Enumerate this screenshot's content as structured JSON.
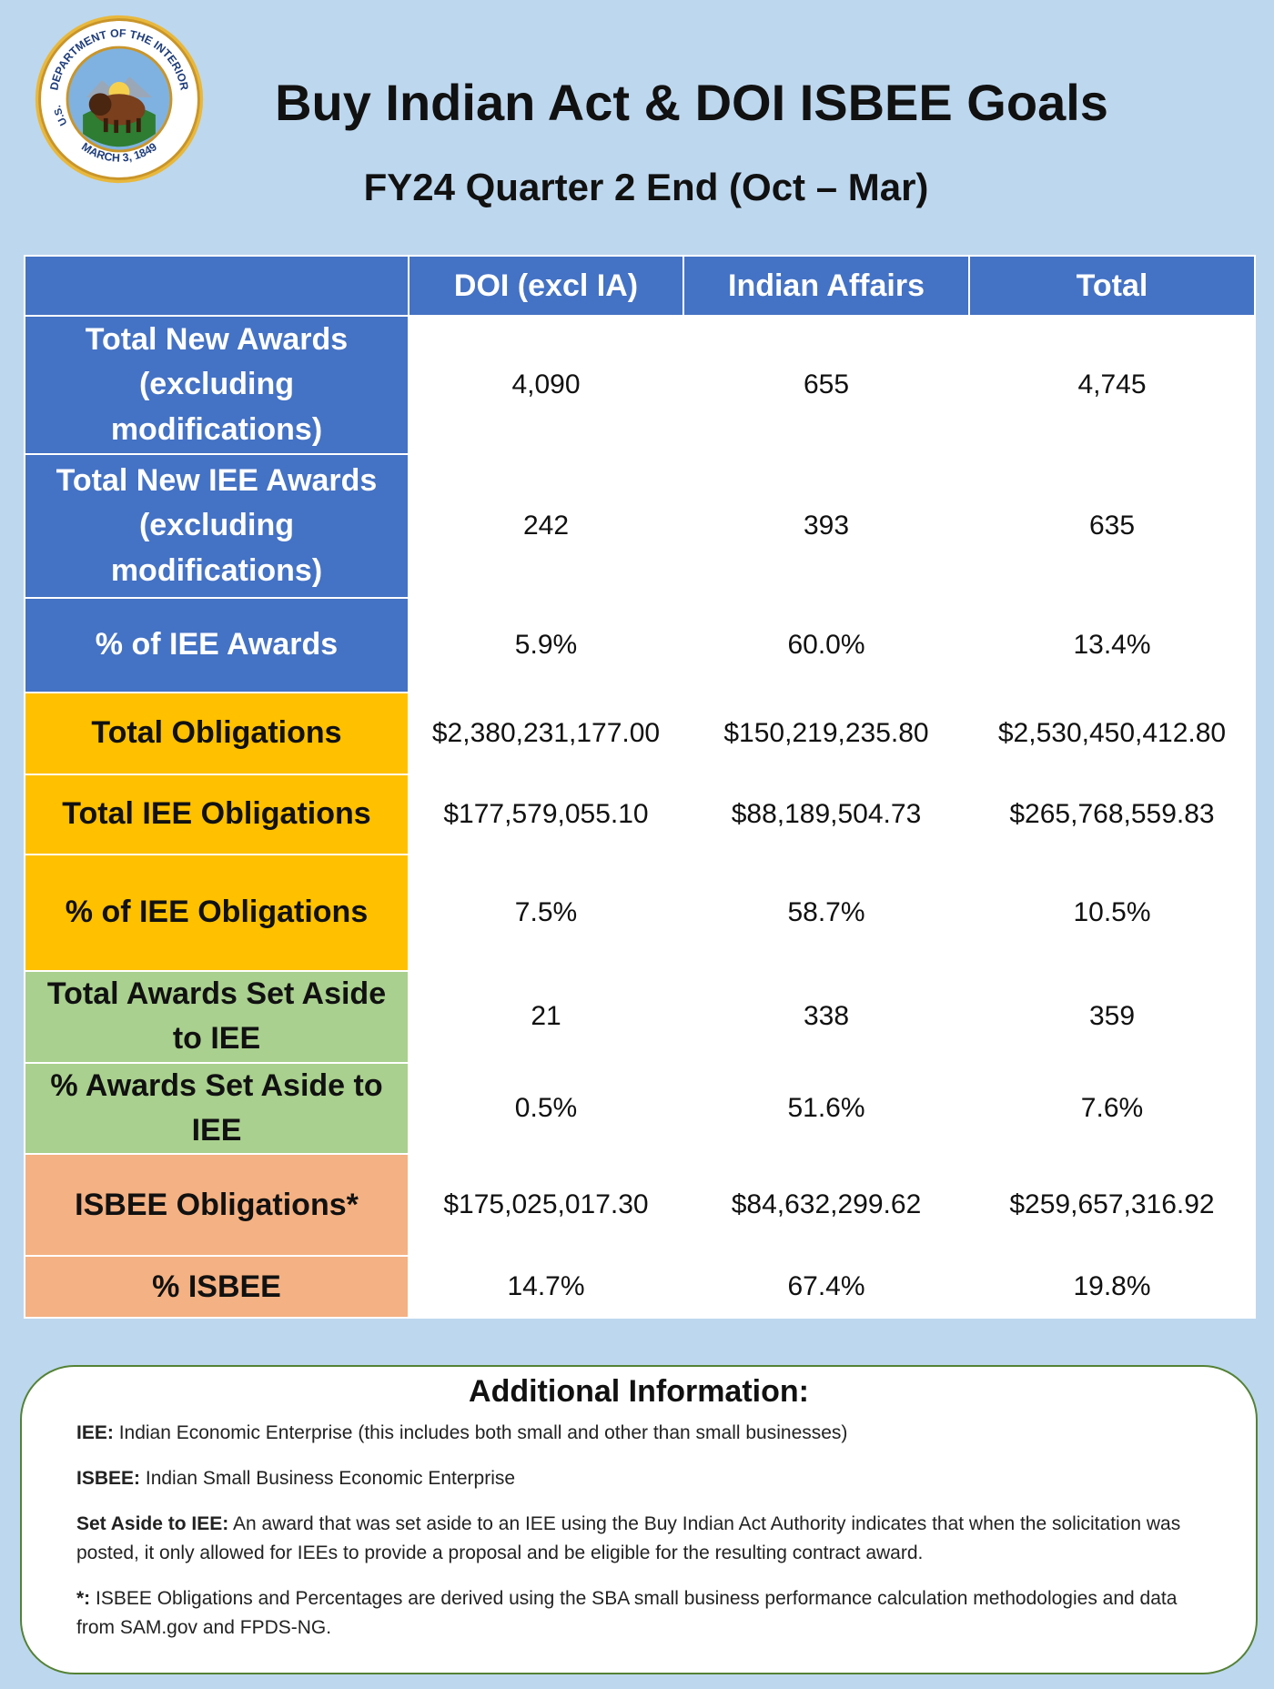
{
  "seal": {
    "ring_top_text": "DEPARTMENT OF THE INTERIOR",
    "ring_left_text": "U.S.",
    "ring_bottom_text": "MARCH 3, 1849"
  },
  "header": {
    "title": "Buy Indian Act & DOI ISBEE Goals",
    "subtitle": "FY24 Quarter 2 End (Oct – Mar)"
  },
  "table": {
    "columns": [
      "",
      "DOI (excl IA)",
      "Indian Affairs",
      "Total"
    ],
    "rows": [
      {
        "label": "Total New Awards (excluding modifications)",
        "values": [
          "4,090",
          "655",
          "4,745"
        ]
      },
      {
        "label": "Total New IEE Awards (excluding modifications)",
        "values": [
          "242",
          "393",
          "635"
        ]
      },
      {
        "label": "% of IEE Awards",
        "values": [
          "5.9%",
          "60.0%",
          "13.4%"
        ]
      },
      {
        "label": "Total Obligations",
        "values": [
          "$2,380,231,177.00",
          "$150,219,235.80",
          "$2,530,450,412.80"
        ]
      },
      {
        "label": "Total IEE Obligations",
        "values": [
          "$177,579,055.10",
          "$88,189,504.73",
          "$265,768,559.83"
        ]
      },
      {
        "label": "% of IEE Obligations",
        "values": [
          "7.5%",
          "58.7%",
          "10.5%"
        ]
      },
      {
        "label": "Total Awards Set Aside to IEE",
        "values": [
          "21",
          "338",
          "359"
        ]
      },
      {
        "label": "% Awards Set Aside to IEE",
        "values": [
          "0.5%",
          "51.6%",
          "7.6%"
        ]
      },
      {
        "label": "ISBEE Obligations*",
        "values": [
          "$175,025,017.30",
          "$84,632,299.62",
          "$259,657,316.92"
        ]
      },
      {
        "label": "% ISBEE",
        "values": [
          "14.7%",
          "67.4%",
          "19.8%"
        ]
      }
    ]
  },
  "info": {
    "title": "Additional Information:",
    "items": [
      {
        "term": "IEE:",
        "text": "Indian Economic Enterprise (this includes both small and other than small businesses)"
      },
      {
        "term": "ISBEE:",
        "text": "Indian Small Business Economic Enterprise"
      },
      {
        "term": "Set Aside to IEE:",
        "text": "An award that was set aside to an IEE using the Buy Indian Act Authority indicates that when the solicitation was posted, it only allowed for IEEs to provide a proposal and be eligible for the resulting contract award."
      },
      {
        "term": "*:",
        "text": "ISBEE Obligations and Percentages are derived using the SBA small business performance calculation methodologies and data from SAM.gov and FPDS-NG."
      }
    ]
  }
}
